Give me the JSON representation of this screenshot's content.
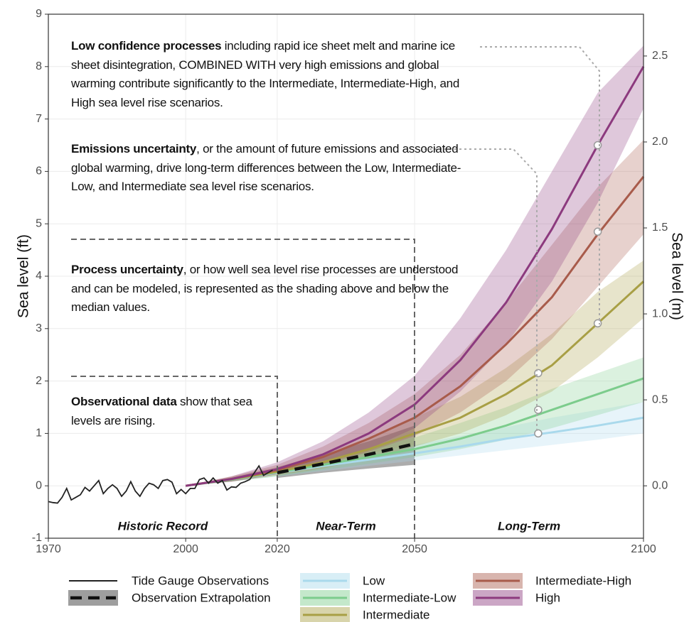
{
  "chart_data": {
    "type": "line",
    "ylabel": "Sea level (ft)",
    "y2label": "Sea level (m)",
    "xlim": [
      1970,
      2100
    ],
    "xticks": [
      1970,
      2000,
      2020,
      2050,
      2100
    ],
    "ylim": [
      -1,
      9
    ],
    "yticks": [
      -1,
      0,
      1,
      2,
      3,
      4,
      5,
      6,
      7,
      8,
      9
    ],
    "y2lim": [
      -0.3048,
      2.7432
    ],
    "y2ticks": [
      {
        "value": 0,
        "label": "0.0"
      },
      0.5,
      {
        "value": 1,
        "label": "1.0"
      },
      1.5,
      {
        "value": 2,
        "label": "2.0"
      },
      2.5
    ],
    "grid": true,
    "observations": {
      "name": "Tide Gauge Observations",
      "color": "#222222",
      "x": [
        1970,
        1971,
        1972,
        1973,
        1974,
        1975,
        1976,
        1977,
        1978,
        1979,
        1980,
        1981,
        1982,
        1983,
        1984,
        1985,
        1986,
        1987,
        1988,
        1989,
        1990,
        1991,
        1992,
        1993,
        1994,
        1995,
        1996,
        1997,
        1998,
        1999,
        2000,
        2001,
        2002,
        2003,
        2004,
        2005,
        2006,
        2007,
        2008,
        2009,
        2010,
        2011,
        2012,
        2013,
        2014,
        2015,
        2016,
        2017,
        2018,
        2019
      ],
      "values": [
        -0.3,
        -0.32,
        -0.33,
        -0.22,
        -0.05,
        -0.27,
        -0.22,
        -0.17,
        -0.03,
        -0.1,
        0.0,
        0.1,
        -0.15,
        -0.05,
        0.02,
        -0.05,
        -0.2,
        -0.1,
        0.08,
        -0.1,
        -0.2,
        -0.05,
        0.05,
        0.02,
        -0.05,
        0.1,
        0.12,
        0.07,
        -0.15,
        -0.07,
        -0.15,
        -0.05,
        -0.05,
        0.12,
        0.15,
        0.05,
        0.15,
        0.05,
        0.1,
        -0.08,
        -0.02,
        -0.03,
        0.05,
        0.08,
        0.12,
        0.25,
        0.38,
        0.2,
        0.25,
        0.3
      ]
    },
    "extrapolation": {
      "name": "Observation Extrapolation",
      "color": "#111111",
      "band_color": "#9e9e9e",
      "x": [
        2020,
        2030,
        2040,
        2050
      ],
      "values": [
        0.25,
        0.42,
        0.6,
        0.8
      ],
      "low": [
        0.15,
        0.25,
        0.33,
        0.4
      ],
      "high": [
        0.35,
        0.6,
        0.85,
        1.15
      ]
    },
    "x": [
      2000,
      2010,
      2020,
      2030,
      2040,
      2050,
      2060,
      2070,
      2080,
      2090,
      2100
    ],
    "series": [
      {
        "name": "Low",
        "color": "#a9d9ec",
        "values": [
          0,
          0.12,
          0.25,
          0.38,
          0.5,
          0.62,
          0.75,
          0.9,
          1.02,
          1.15,
          1.3
        ],
        "low": [
          0,
          0.08,
          0.18,
          0.28,
          0.38,
          0.48,
          0.58,
          0.68,
          0.78,
          0.88,
          1.0
        ],
        "high": [
          0,
          0.15,
          0.32,
          0.48,
          0.62,
          0.78,
          0.95,
          1.12,
          1.3,
          1.45,
          1.6
        ]
      },
      {
        "name": "Intermediate-Low",
        "color": "#7ccc8c",
        "values": [
          0,
          0.12,
          0.26,
          0.4,
          0.55,
          0.7,
          0.9,
          1.15,
          1.45,
          1.75,
          2.05
        ],
        "low": [
          0,
          0.08,
          0.18,
          0.3,
          0.42,
          0.55,
          0.7,
          0.88,
          1.1,
          1.35,
          1.6
        ],
        "high": [
          0,
          0.16,
          0.34,
          0.52,
          0.72,
          0.92,
          1.2,
          1.5,
          1.85,
          2.15,
          2.45
        ]
      },
      {
        "name": "Intermediate",
        "color": "#a89f45",
        "values": [
          0,
          0.13,
          0.27,
          0.45,
          0.7,
          1.0,
          1.3,
          1.75,
          2.3,
          3.1,
          3.9
        ],
        "low": [
          0,
          0.08,
          0.2,
          0.33,
          0.52,
          0.75,
          1.0,
          1.35,
          1.8,
          2.45,
          3.2
        ],
        "high": [
          0,
          0.17,
          0.36,
          0.6,
          0.92,
          1.3,
          1.7,
          2.25,
          2.9,
          3.7,
          4.3
        ]
      },
      {
        "name": "Intermediate-High",
        "color": "#a85b4b",
        "values": [
          0,
          0.13,
          0.3,
          0.55,
          0.9,
          1.3,
          1.9,
          2.7,
          3.6,
          4.8,
          5.9
        ],
        "low": [
          0,
          0.08,
          0.22,
          0.4,
          0.65,
          0.95,
          1.4,
          2.0,
          2.8,
          3.8,
          4.8
        ],
        "high": [
          0,
          0.18,
          0.4,
          0.75,
          1.2,
          1.75,
          2.5,
          3.5,
          4.6,
          5.7,
          6.6
        ]
      },
      {
        "name": "High",
        "color": "#8c3a7e",
        "values": [
          0,
          0.13,
          0.32,
          0.6,
          1.0,
          1.55,
          2.4,
          3.5,
          4.9,
          6.5,
          8.0
        ],
        "low": [
          0,
          0.08,
          0.22,
          0.42,
          0.7,
          1.1,
          1.8,
          2.7,
          3.9,
          5.4,
          7.2
        ],
        "high": [
          0,
          0.18,
          0.45,
          0.85,
          1.4,
          2.1,
          3.2,
          4.5,
          6.0,
          7.5,
          8.4
        ]
      }
    ],
    "markers": {
      "x": [
        2077,
        2077,
        2077,
        2090,
        2090,
        2090
      ],
      "y": [
        1.0,
        1.45,
        2.15,
        3.1,
        4.85,
        6.5
      ]
    },
    "periods": [
      "Historic Record",
      "Near-Term",
      "Long-Term"
    ],
    "annotations": [
      {
        "bold": "Low confidence processes",
        "text": "including rapid ice sheet melt and marine ice sheet disintegration, COMBINED WITH very high emissions and global warming contribute significantly to the Intermediate, Intermediate-High, and High sea level rise scenarios."
      },
      {
        "bold": "Emissions uncertainty",
        "text": ", or the amount of future emissions and associated global warming, drive long-term differences between the Low, Intermediate-Low, and Intermediate sea level rise scenarios."
      },
      {
        "bold": "Process uncertainty",
        "text": ", or how well sea level rise processes are understood and can be modeled, is represented as the shading above and below the median values."
      },
      {
        "bold": "Observational data",
        "text": "show that sea levels are rising."
      }
    ]
  }
}
